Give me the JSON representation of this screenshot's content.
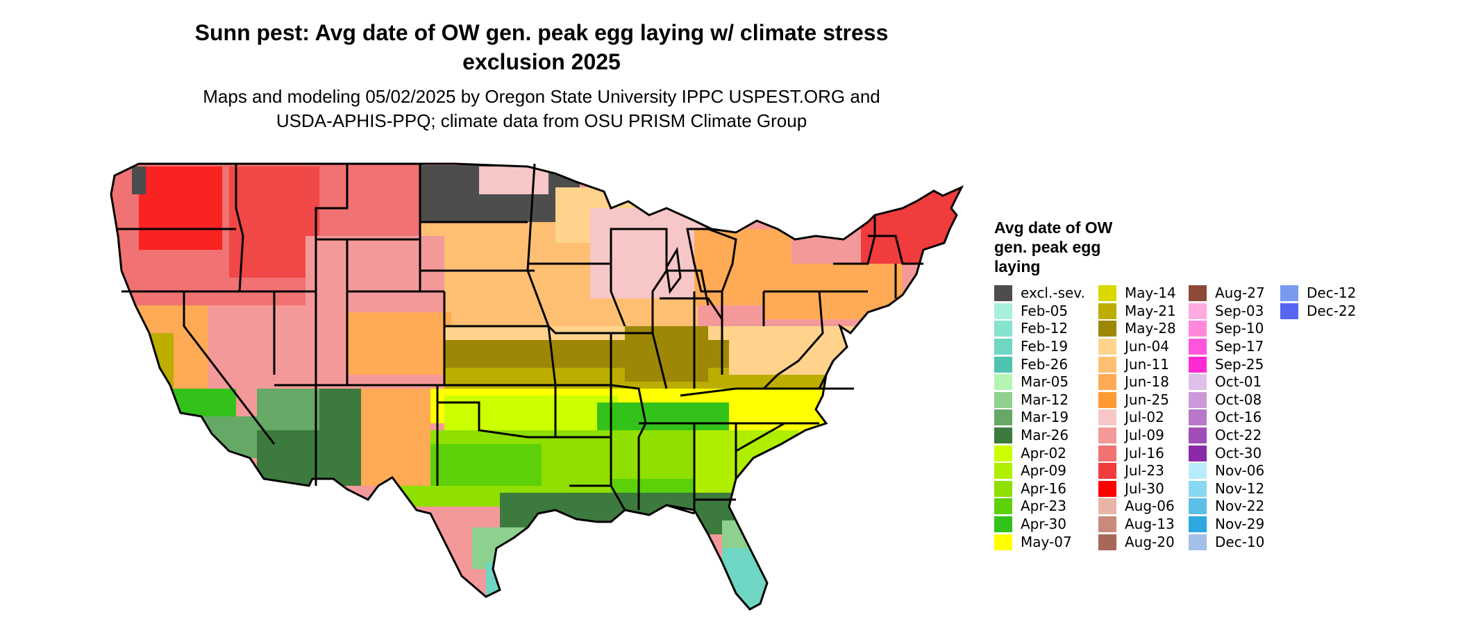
{
  "title_line1": "Sunn pest: Avg date of OW gen. peak egg laying w/ climate stress",
  "title_line2": "exclusion 2025",
  "subtitle_line1": "Maps and modeling 05/02/2025 by Oregon State University IPPC USPEST.ORG and",
  "subtitle_line2": "USDA-APHIS-PPQ; climate data from OSU PRISM Climate Group",
  "legend": {
    "title_line1": "Avg date of OW",
    "title_line2": "gen. peak egg",
    "title_line3": "laying",
    "items": [
      {
        "label": "excl.-sev.",
        "color": "#4d4d4d"
      },
      {
        "label": "Feb-05",
        "color": "#a8f0dc"
      },
      {
        "label": "Feb-12",
        "color": "#86e3cf"
      },
      {
        "label": "Feb-19",
        "color": "#6ed6c2"
      },
      {
        "label": "Feb-26",
        "color": "#4ec4b0"
      },
      {
        "label": "Mar-05",
        "color": "#b4f5b4"
      },
      {
        "label": "Mar-12",
        "color": "#8ed18e"
      },
      {
        "label": "Mar-19",
        "color": "#66a866"
      },
      {
        "label": "Mar-26",
        "color": "#3d7a3d"
      },
      {
        "label": "Apr-02",
        "color": "#ccff00"
      },
      {
        "label": "Apr-09",
        "color": "#b0ee00"
      },
      {
        "label": "Apr-16",
        "color": "#8fe000"
      },
      {
        "label": "Apr-23",
        "color": "#5cd10a"
      },
      {
        "label": "Apr-30",
        "color": "#33c21a"
      },
      {
        "label": "May-07",
        "color": "#ffff00"
      },
      {
        "label": "May-14",
        "color": "#d9d900"
      },
      {
        "label": "May-21",
        "color": "#bcad00"
      },
      {
        "label": "May-28",
        "color": "#9c8806"
      },
      {
        "label": "Jun-04",
        "color": "#ffd38c"
      },
      {
        "label": "Jun-11",
        "color": "#ffbf73"
      },
      {
        "label": "Jun-18",
        "color": "#ffaa55"
      },
      {
        "label": "Jun-25",
        "color": "#ff9a33"
      },
      {
        "label": "Jul-02",
        "color": "#f7c6c6"
      },
      {
        "label": "Jul-09",
        "color": "#f49999"
      },
      {
        "label": "Jul-16",
        "color": "#f07272"
      },
      {
        "label": "Jul-23",
        "color": "#f03c3c"
      },
      {
        "label": "Jul-30",
        "color": "#ff0000"
      },
      {
        "label": "Aug-06",
        "color": "#e8b4a8"
      },
      {
        "label": "Aug-13",
        "color": "#c88a7a"
      },
      {
        "label": "Aug-20",
        "color": "#a86858"
      },
      {
        "label": "Aug-27",
        "color": "#8e4a38"
      },
      {
        "label": "Sep-03",
        "color": "#ffaae0"
      },
      {
        "label": "Sep-10",
        "color": "#ff88dd"
      },
      {
        "label": "Sep-17",
        "color": "#ff55dd"
      },
      {
        "label": "Sep-25",
        "color": "#ff2ad4"
      },
      {
        "label": "Oct-01",
        "color": "#e0c0e8"
      },
      {
        "label": "Oct-08",
        "color": "#cc99d8"
      },
      {
        "label": "Oct-16",
        "color": "#b877c8"
      },
      {
        "label": "Oct-22",
        "color": "#a04db8"
      },
      {
        "label": "Oct-30",
        "color": "#8a2aa8"
      },
      {
        "label": "Nov-06",
        "color": "#b8ecfa"
      },
      {
        "label": "Nov-12",
        "color": "#88d8f2"
      },
      {
        "label": "Nov-22",
        "color": "#5cbfe8"
      },
      {
        "label": "Nov-29",
        "color": "#2ea8e0"
      },
      {
        "label": "Dec-10",
        "color": "#a4c0e8"
      },
      {
        "label": "Dec-12",
        "color": "#7a9af0"
      },
      {
        "label": "Dec-22",
        "color": "#5566f0"
      }
    ]
  },
  "colors": {
    "boundary": "#000000",
    "background": "#ffffff"
  }
}
